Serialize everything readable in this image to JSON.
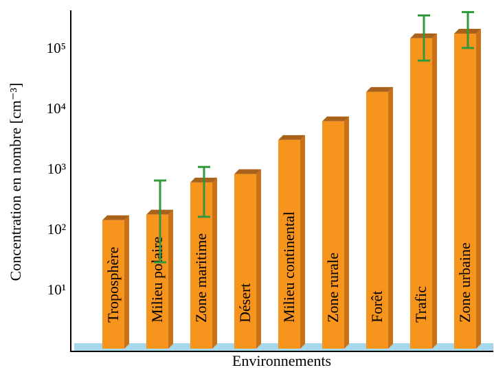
{
  "chart_data": {
    "type": "bar",
    "y_label": "Concentration en nombre [cm⁻³]",
    "x_label": "Environnements",
    "categories": [
      "Troposphère",
      "Milieu polaire",
      "Zone maritime",
      "Désert",
      "Milieu continental",
      "Zone rurale",
      "Forêt",
      "Trafic",
      "Zone urbaine"
    ],
    "values": [
      150,
      185,
      630,
      870,
      3200,
      6500,
      20000,
      155000,
      185000
    ],
    "error_low": [
      null,
      30,
      170,
      null,
      null,
      null,
      null,
      66000,
      107000
    ],
    "error_high": [
      null,
      680,
      1140,
      null,
      null,
      null,
      null,
      370000,
      420000
    ],
    "color": "#f7941d",
    "error_color": "#2e9a3c",
    "log_scale": true,
    "ylim": [
      1,
      450000
    ],
    "yticks": [
      {
        "value": 10,
        "label": "10¹"
      },
      {
        "value": 100,
        "label": "10²"
      },
      {
        "value": 1000,
        "label": "10³"
      },
      {
        "value": 10000,
        "label": "10⁴"
      },
      {
        "value": 100000,
        "label": "10⁵"
      }
    ]
  }
}
